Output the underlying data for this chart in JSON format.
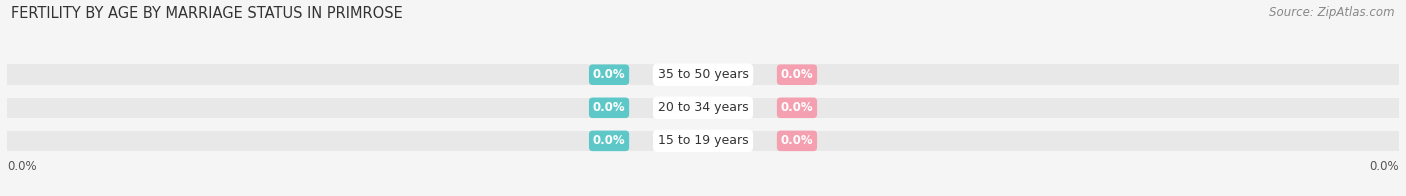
{
  "title": "FERTILITY BY AGE BY MARRIAGE STATUS IN PRIMROSE",
  "source": "Source: ZipAtlas.com",
  "age_groups": [
    "15 to 19 years",
    "20 to 34 years",
    "35 to 50 years"
  ],
  "married_values": [
    0.0,
    0.0,
    0.0
  ],
  "unmarried_values": [
    0.0,
    0.0,
    0.0
  ],
  "married_color": "#5ec8c8",
  "unmarried_color": "#f4a0b0",
  "bar_bg_color": "#e8e8e8",
  "bar_height": 0.62,
  "title_fontsize": 10.5,
  "source_fontsize": 8.5,
  "label_fontsize": 9,
  "axis_label_fontsize": 8.5,
  "legend_fontsize": 9,
  "value_fontsize": 8.5,
  "bg_color": "#f5f5f5"
}
